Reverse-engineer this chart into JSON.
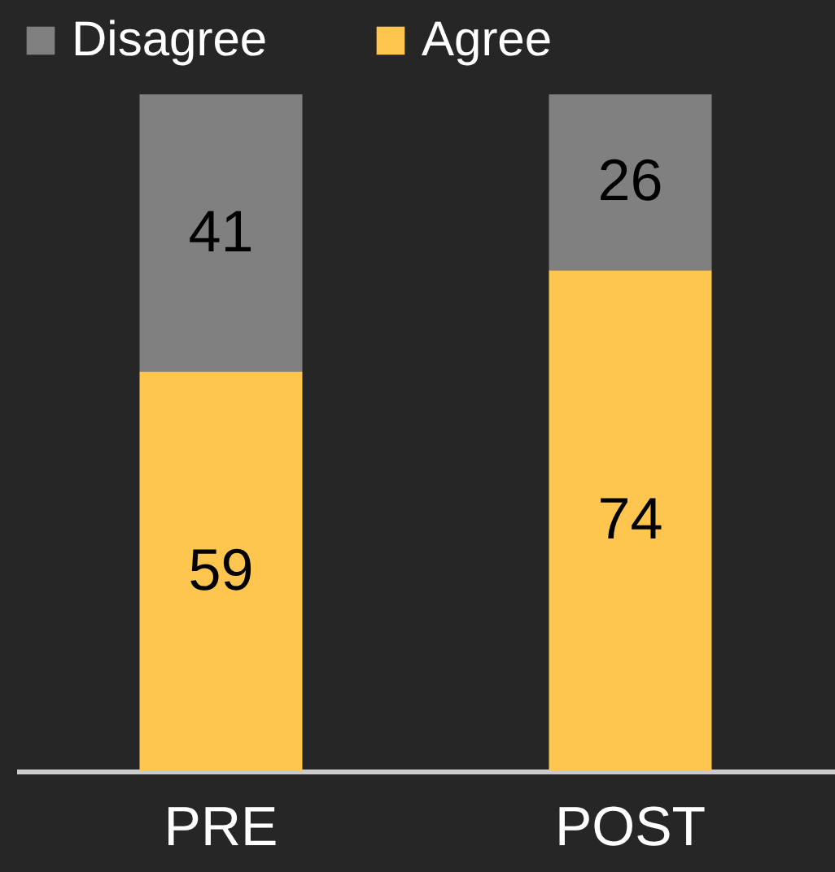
{
  "chart_data": {
    "type": "bar",
    "stacked": true,
    "categories": [
      "PRE",
      "POST"
    ],
    "series": [
      {
        "name": "Agree",
        "color": "#ffc64f",
        "values": [
          59,
          74
        ]
      },
      {
        "name": "Disagree",
        "color": "#808080",
        "values": [
          41,
          26
        ]
      }
    ],
    "ylim": [
      0,
      100
    ],
    "tick_labels": "x",
    "data_labels": true,
    "legend": "top",
    "grid": false
  }
}
